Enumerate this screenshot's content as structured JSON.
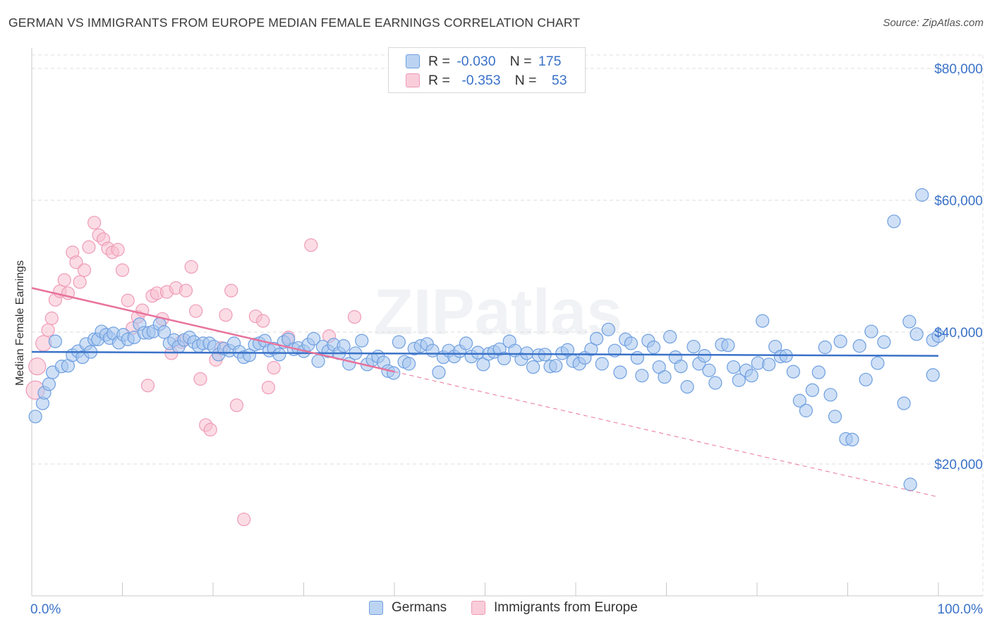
{
  "title": "GERMAN VS IMMIGRANTS FROM EUROPE MEDIAN FEMALE EARNINGS CORRELATION CHART",
  "source": "Source: ZipAtlas.com",
  "watermark": "ZIPatlas",
  "colors": {
    "blue": "#3a72c8",
    "blue_fill": "#a7c6ee",
    "blue_stroke": "#6f9fe0",
    "pink": "#e8739c",
    "pink_fill": "#f7bfd0",
    "pink_stroke": "#ef9bb8"
  },
  "legend_top": {
    "rows": [
      {
        "r_label": "R =",
        "r_value": "-0.030",
        "n_label": "N =",
        "n_value": "175"
      },
      {
        "r_label": "R =",
        "r_value": "-0.353",
        "n_label": "N =",
        "n_value": "53"
      }
    ]
  },
  "legend_bottom": {
    "germans": "Germans",
    "immigrants": "Immigrants from Europe"
  },
  "chart_data": {
    "type": "scatter",
    "title": "GERMAN VS IMMIGRANTS FROM EUROPE MEDIAN FEMALE EARNINGS CORRELATION CHART",
    "xlabel": "",
    "ylabel": "Median Female Earnings",
    "xlim": [
      0,
      100
    ],
    "ylim": [
      0,
      82000
    ],
    "x_tick_labels": [
      "0.0%",
      "100.0%"
    ],
    "y_ticks": [
      {
        "value": 20000,
        "label": "$20,000"
      },
      {
        "value": 40000,
        "label": "$40,000"
      },
      {
        "value": 60000,
        "label": "$60,000"
      },
      {
        "value": 80000,
        "label": "$80,000"
      }
    ],
    "legend_position": "top-center",
    "series": [
      {
        "name": "Germans",
        "r": -0.03,
        "n": 175,
        "trend": {
          "x": [
            0,
            100
          ],
          "y": [
            37000,
            36400
          ],
          "dashed_extension": false
        },
        "points": [
          [
            0.4,
            27200
          ],
          [
            1.2,
            29200
          ],
          [
            1.4,
            30800
          ],
          [
            1.9,
            32100
          ],
          [
            2.3,
            33900
          ],
          [
            2.6,
            38600
          ],
          [
            3.3,
            34800
          ],
          [
            4.0,
            34900
          ],
          [
            4.5,
            36500
          ],
          [
            5.1,
            37100
          ],
          [
            5.6,
            36200
          ],
          [
            6.0,
            38200
          ],
          [
            6.5,
            37000
          ],
          [
            6.9,
            38900
          ],
          [
            7.3,
            38900
          ],
          [
            7.7,
            40100
          ],
          [
            8.2,
            39600
          ],
          [
            8.6,
            39100
          ],
          [
            9.0,
            39800
          ],
          [
            9.6,
            38400
          ],
          [
            10.1,
            39600
          ],
          [
            10.6,
            38900
          ],
          [
            11.3,
            39200
          ],
          [
            11.9,
            41200
          ],
          [
            12.4,
            39900
          ],
          [
            12.9,
            39900
          ],
          [
            13.4,
            40100
          ],
          [
            14.1,
            41200
          ],
          [
            14.6,
            40000
          ],
          [
            15.2,
            38300
          ],
          [
            15.7,
            38800
          ],
          [
            16.2,
            37800
          ],
          [
            16.8,
            38800
          ],
          [
            17.4,
            39200
          ],
          [
            17.9,
            38500
          ],
          [
            18.4,
            37900
          ],
          [
            18.9,
            38300
          ],
          [
            19.6,
            38300
          ],
          [
            20.1,
            37800
          ],
          [
            20.6,
            36600
          ],
          [
            21.2,
            37500
          ],
          [
            21.8,
            37200
          ],
          [
            22.3,
            38300
          ],
          [
            22.9,
            37000
          ],
          [
            23.4,
            36200
          ],
          [
            24.0,
            36500
          ],
          [
            24.6,
            38100
          ],
          [
            25.1,
            38300
          ],
          [
            25.7,
            38700
          ],
          [
            26.2,
            37200
          ],
          [
            26.7,
            37500
          ],
          [
            27.3,
            36600
          ],
          [
            27.8,
            38500
          ],
          [
            28.3,
            38900
          ],
          [
            28.9,
            37400
          ],
          [
            29.4,
            37600
          ],
          [
            30.0,
            37100
          ],
          [
            30.5,
            38100
          ],
          [
            31.1,
            39000
          ],
          [
            31.6,
            35600
          ],
          [
            32.1,
            37800
          ],
          [
            32.7,
            37100
          ],
          [
            33.3,
            38100
          ],
          [
            33.9,
            36800
          ],
          [
            34.4,
            37900
          ],
          [
            35.0,
            35200
          ],
          [
            35.7,
            36800
          ],
          [
            36.4,
            38700
          ],
          [
            37.0,
            35100
          ],
          [
            37.6,
            35800
          ],
          [
            38.2,
            36300
          ],
          [
            38.8,
            35400
          ],
          [
            39.3,
            34100
          ],
          [
            39.9,
            33800
          ],
          [
            40.5,
            38500
          ],
          [
            41.1,
            35500
          ],
          [
            41.6,
            35200
          ],
          [
            42.2,
            37500
          ],
          [
            42.9,
            37900
          ],
          [
            43.6,
            38200
          ],
          [
            44.2,
            37200
          ],
          [
            44.9,
            33900
          ],
          [
            45.4,
            36200
          ],
          [
            46.0,
            37200
          ],
          [
            46.6,
            36300
          ],
          [
            47.2,
            37100
          ],
          [
            47.9,
            38300
          ],
          [
            48.5,
            36300
          ],
          [
            49.2,
            36900
          ],
          [
            49.8,
            35100
          ],
          [
            50.4,
            36700
          ],
          [
            51.0,
            37000
          ],
          [
            51.6,
            37400
          ],
          [
            52.1,
            36000
          ],
          [
            52.7,
            38600
          ],
          [
            53.3,
            37200
          ],
          [
            54.0,
            35900
          ],
          [
            54.6,
            36800
          ],
          [
            55.3,
            34700
          ],
          [
            55.9,
            36500
          ],
          [
            56.6,
            36600
          ],
          [
            57.2,
            34800
          ],
          [
            57.8,
            34900
          ],
          [
            58.5,
            36800
          ],
          [
            59.1,
            37300
          ],
          [
            59.7,
            35600
          ],
          [
            60.4,
            35200
          ],
          [
            61.0,
            36100
          ],
          [
            61.7,
            37400
          ],
          [
            62.3,
            39000
          ],
          [
            62.9,
            35200
          ],
          [
            63.6,
            40400
          ],
          [
            64.3,
            37200
          ],
          [
            64.9,
            33900
          ],
          [
            65.5,
            38900
          ],
          [
            66.1,
            38300
          ],
          [
            66.8,
            36100
          ],
          [
            67.3,
            33400
          ],
          [
            68.0,
            38700
          ],
          [
            68.6,
            37700
          ],
          [
            69.2,
            34700
          ],
          [
            69.8,
            33200
          ],
          [
            70.4,
            39300
          ],
          [
            71.0,
            36200
          ],
          [
            71.6,
            34800
          ],
          [
            72.3,
            31700
          ],
          [
            73.0,
            37800
          ],
          [
            73.6,
            35200
          ],
          [
            74.2,
            36400
          ],
          [
            74.7,
            34200
          ],
          [
            75.4,
            32300
          ],
          [
            76.1,
            38100
          ],
          [
            76.8,
            38000
          ],
          [
            77.4,
            34700
          ],
          [
            78.0,
            32700
          ],
          [
            78.8,
            34200
          ],
          [
            79.4,
            33400
          ],
          [
            80.1,
            35300
          ],
          [
            80.6,
            41700
          ],
          [
            81.3,
            35100
          ],
          [
            82.0,
            37800
          ],
          [
            82.6,
            36300
          ],
          [
            83.2,
            36400
          ],
          [
            84.0,
            34000
          ],
          [
            84.7,
            29600
          ],
          [
            85.4,
            28100
          ],
          [
            86.1,
            31200
          ],
          [
            86.8,
            33900
          ],
          [
            87.5,
            37700
          ],
          [
            88.1,
            30500
          ],
          [
            88.6,
            27200
          ],
          [
            89.2,
            38600
          ],
          [
            89.8,
            23800
          ],
          [
            90.5,
            23700
          ],
          [
            91.3,
            37900
          ],
          [
            92.0,
            32800
          ],
          [
            92.6,
            40100
          ],
          [
            93.3,
            35300
          ],
          [
            94.0,
            38500
          ],
          [
            95.1,
            56800
          ],
          [
            96.2,
            29200
          ],
          [
            96.8,
            41600
          ],
          [
            96.9,
            16900
          ],
          [
            97.6,
            39700
          ],
          [
            98.2,
            60800
          ],
          [
            99.4,
            33500
          ],
          [
            99.4,
            38800
          ],
          [
            100.0,
            39400
          ]
        ]
      },
      {
        "name": "Immigrants from Europe",
        "r": -0.353,
        "n": 53,
        "trend": {
          "x": [
            0,
            40
          ],
          "y": [
            46700,
            34000
          ],
          "dashed_extension": true,
          "dashed_to": {
            "x": 100,
            "y": 15000
          }
        },
        "points": [
          [
            0.4,
            31200
          ],
          [
            0.6,
            34800
          ],
          [
            1.3,
            38300
          ],
          [
            1.8,
            40300
          ],
          [
            2.2,
            42100
          ],
          [
            2.6,
            44900
          ],
          [
            3.1,
            46200
          ],
          [
            3.6,
            47900
          ],
          [
            4.0,
            45900
          ],
          [
            4.5,
            52100
          ],
          [
            4.9,
            50600
          ],
          [
            5.3,
            47600
          ],
          [
            5.8,
            49400
          ],
          [
            6.3,
            52900
          ],
          [
            6.9,
            56600
          ],
          [
            7.4,
            54700
          ],
          [
            7.9,
            54100
          ],
          [
            8.4,
            52700
          ],
          [
            8.9,
            52100
          ],
          [
            9.5,
            52500
          ],
          [
            10.0,
            49400
          ],
          [
            10.6,
            44800
          ],
          [
            11.1,
            40600
          ],
          [
            11.7,
            42300
          ],
          [
            12.2,
            43300
          ],
          [
            12.8,
            31900
          ],
          [
            13.3,
            45500
          ],
          [
            13.8,
            45900
          ],
          [
            14.4,
            42000
          ],
          [
            14.9,
            46100
          ],
          [
            15.4,
            36800
          ],
          [
            15.9,
            46700
          ],
          [
            16.5,
            38500
          ],
          [
            17.0,
            46300
          ],
          [
            17.6,
            49900
          ],
          [
            18.1,
            43200
          ],
          [
            18.6,
            32900
          ],
          [
            19.2,
            25900
          ],
          [
            19.7,
            25200
          ],
          [
            20.3,
            35800
          ],
          [
            20.9,
            37600
          ],
          [
            21.4,
            42600
          ],
          [
            22.0,
            46300
          ],
          [
            22.6,
            28900
          ],
          [
            23.4,
            11600
          ],
          [
            24.7,
            42400
          ],
          [
            25.5,
            41700
          ],
          [
            26.1,
            31600
          ],
          [
            26.7,
            34600
          ],
          [
            28.3,
            39200
          ],
          [
            30.8,
            53200
          ],
          [
            32.8,
            39400
          ],
          [
            35.6,
            42300
          ]
        ]
      }
    ]
  }
}
